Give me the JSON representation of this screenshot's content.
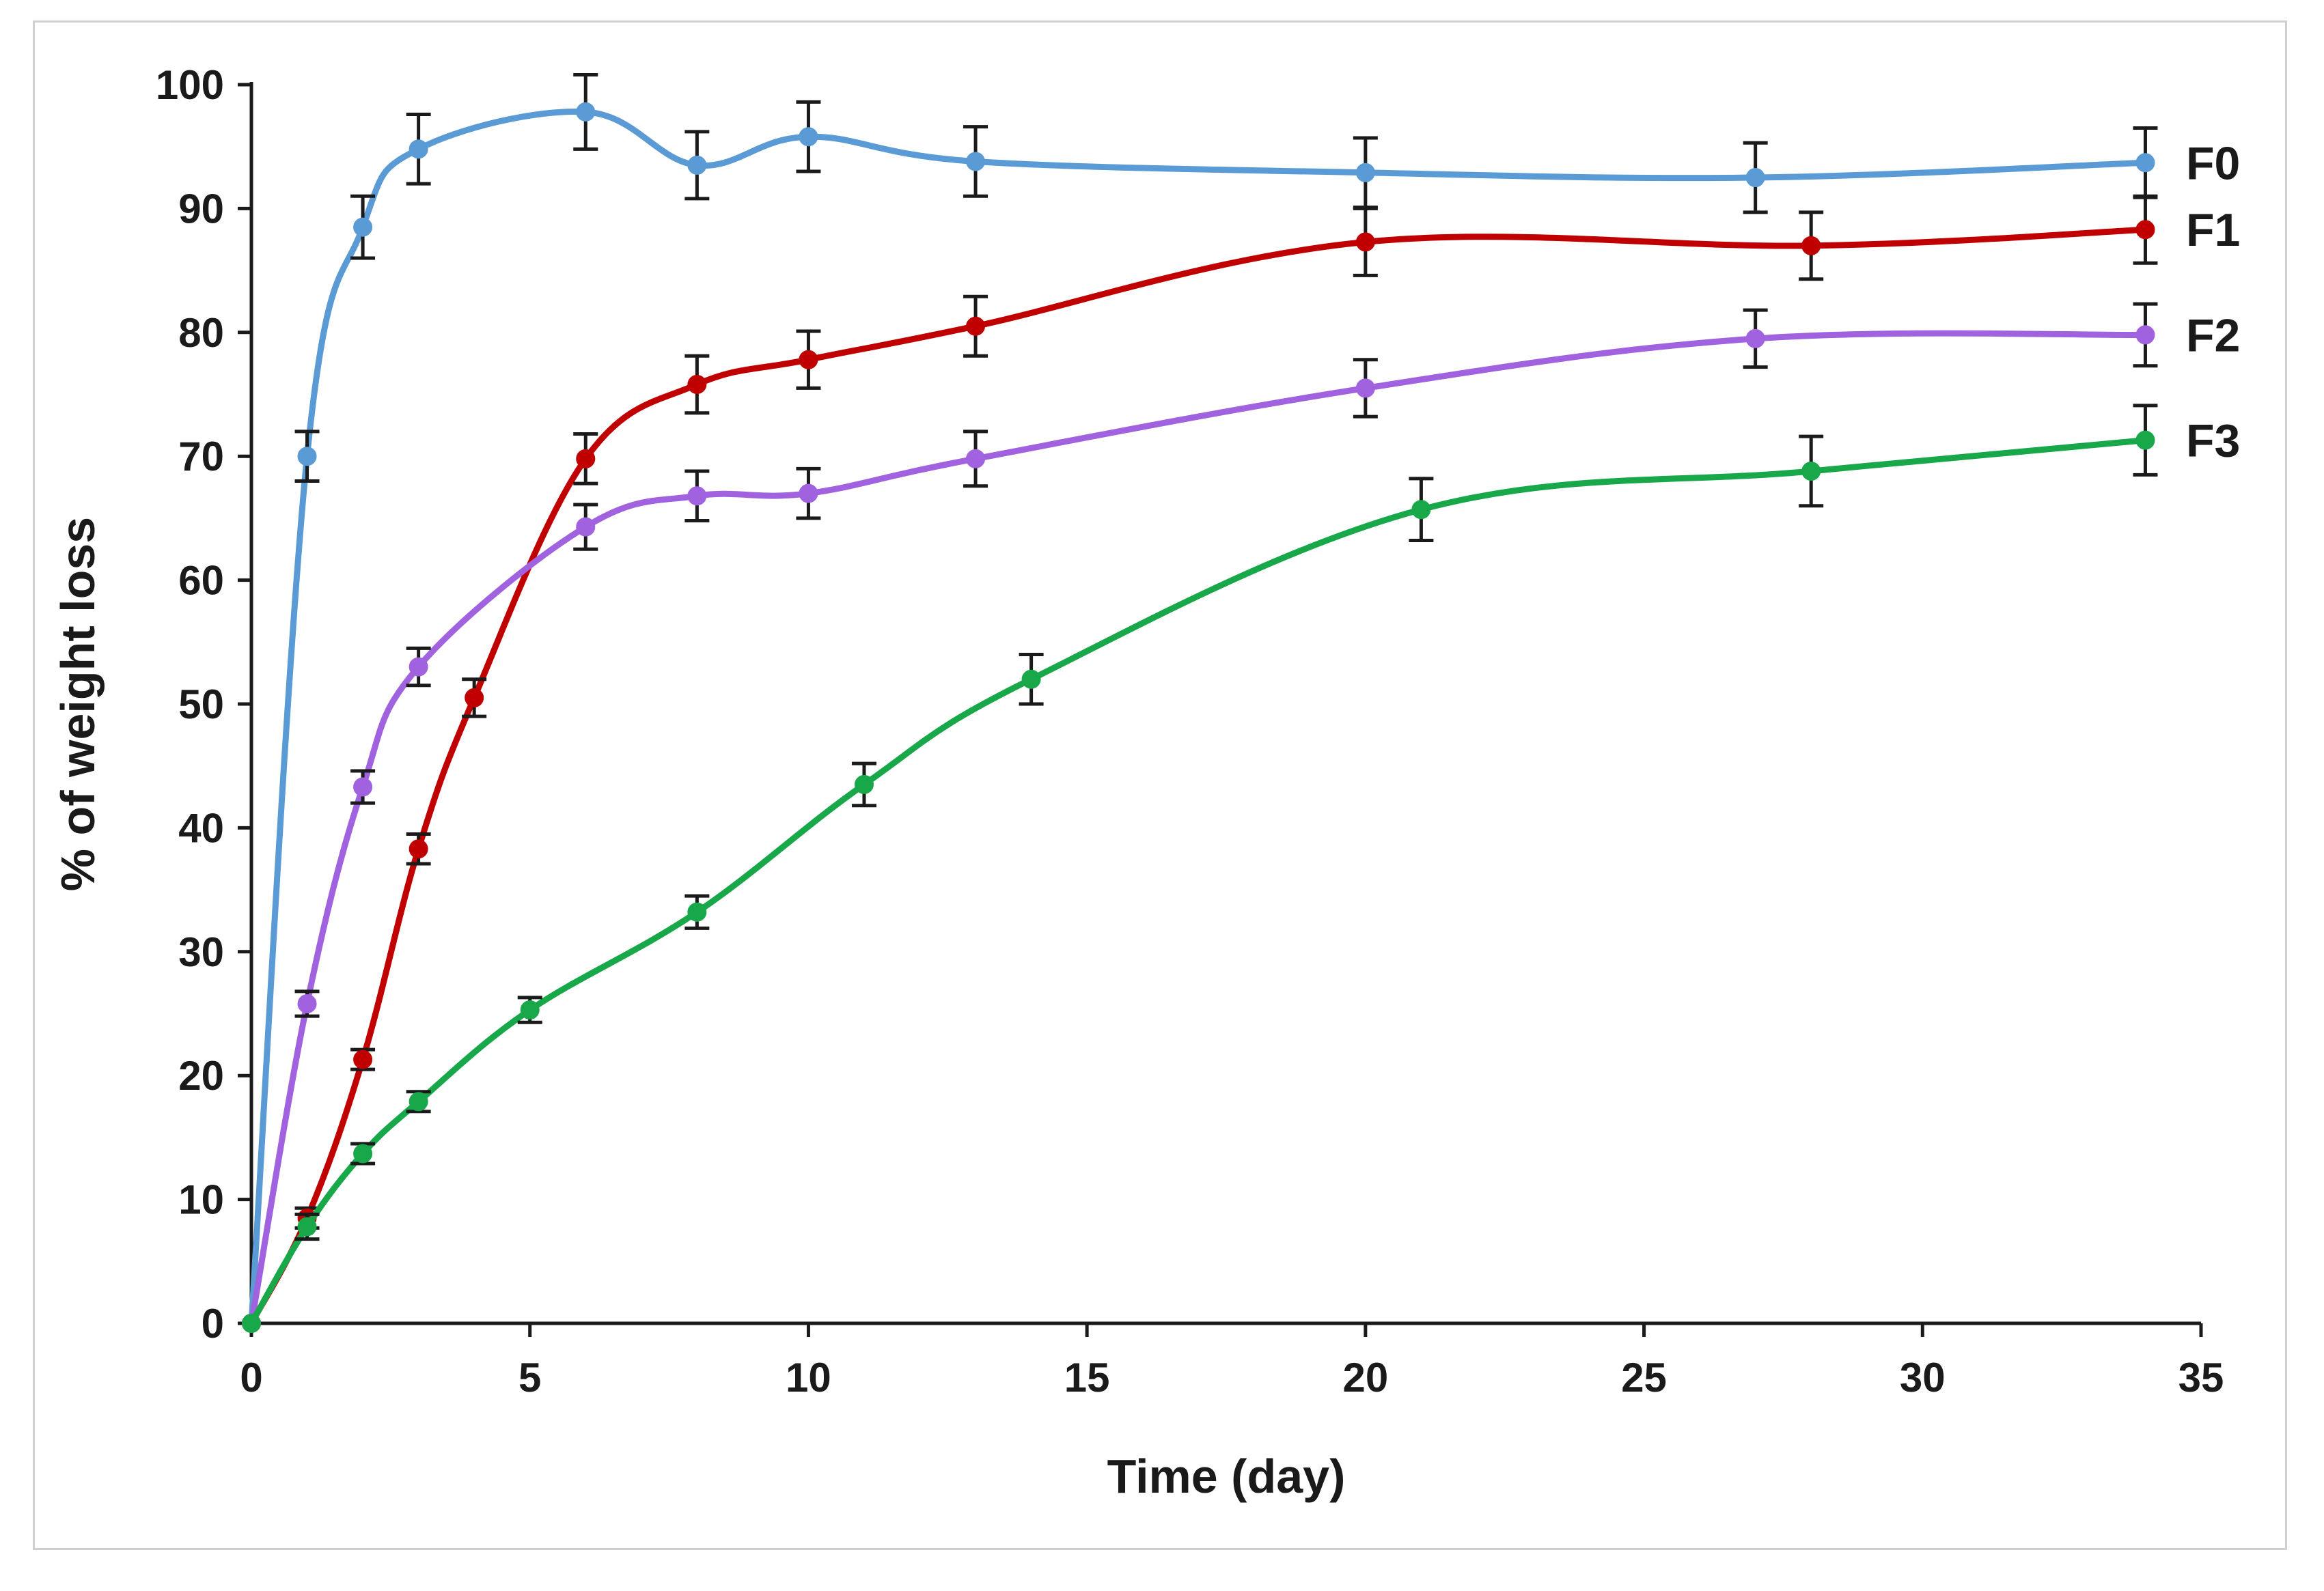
{
  "chart_data": {
    "type": "line",
    "title": "",
    "xlabel": "Time (day)",
    "ylabel": "% of weight loss",
    "xlim": [
      0,
      35
    ],
    "ylim": [
      0,
      100
    ],
    "xticks": [
      "0",
      "5",
      "10",
      "15",
      "20",
      "25",
      "30",
      "35"
    ],
    "yticks": [
      "0",
      "10",
      "20",
      "30",
      "40",
      "50",
      "60",
      "70",
      "80",
      "90",
      "100"
    ],
    "grid": false,
    "legend": "inline-right",
    "series": [
      {
        "name": "F0",
        "color": "#5b9bd5",
        "x": [
          0,
          1,
          2,
          3,
          6,
          8,
          10,
          13,
          20,
          27,
          34
        ],
        "y": [
          0,
          70,
          88.5,
          94.8,
          97.8,
          93.5,
          95.8,
          93.8,
          92.9,
          92.5,
          93.7
        ],
        "err": [
          0,
          2,
          2.5,
          2.8,
          3,
          2.7,
          2.8,
          2.8,
          2.8,
          2.8,
          2.8
        ]
      },
      {
        "name": "F1",
        "color": "#c00000",
        "x": [
          0,
          1,
          2,
          3,
          4,
          6,
          8,
          10,
          13,
          20,
          28,
          34
        ],
        "y": [
          0,
          8.5,
          21.3,
          38.3,
          50.5,
          69.8,
          75.8,
          77.8,
          80.5,
          87.3,
          87,
          88.3
        ],
        "err": [
          0,
          0.8,
          0.8,
          1.2,
          1.5,
          2,
          2.3,
          2.3,
          2.4,
          2.7,
          2.7,
          2.7
        ]
      },
      {
        "name": "F2",
        "color": "#a162e0",
        "x": [
          0,
          1,
          2,
          3,
          6,
          8,
          10,
          13,
          20,
          27,
          34
        ],
        "y": [
          0,
          25.8,
          43.3,
          53,
          64.3,
          66.8,
          67,
          69.8,
          75.5,
          79.5,
          79.8
        ],
        "err": [
          0,
          1,
          1.3,
          1.5,
          1.8,
          2,
          2,
          2.2,
          2.3,
          2.3,
          2.5
        ]
      },
      {
        "name": "F3",
        "color": "#18a84a",
        "x": [
          0,
          1,
          2,
          3,
          5,
          8,
          11,
          14,
          21,
          28,
          34
        ],
        "y": [
          0,
          7.8,
          13.7,
          17.9,
          25.3,
          33.2,
          43.5,
          52,
          65.7,
          68.8,
          71.3
        ],
        "err": [
          0,
          1,
          0.8,
          0.8,
          1,
          1.3,
          1.7,
          2,
          2.5,
          2.8,
          2.8
        ]
      }
    ]
  }
}
